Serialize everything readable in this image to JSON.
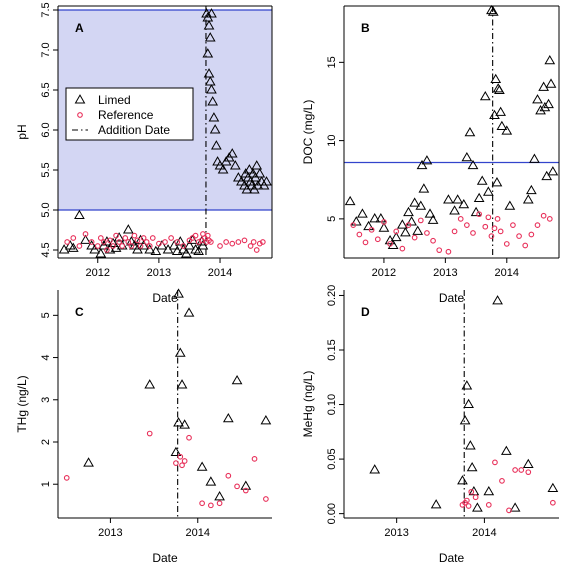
{
  "figure": {
    "legend": {
      "items": [
        {
          "label": "Limed",
          "marker": "triangle",
          "color": "#000000"
        },
        {
          "label": "Reference",
          "marker": "circle",
          "color": "#e8305a"
        },
        {
          "label": "Addition Date",
          "marker": "dash-dot-line",
          "color": "#000000"
        }
      ]
    },
    "colors": {
      "limed": "#000000",
      "reference": "#e8305a",
      "threshold_line": "#3344cc",
      "shaded_region": "#d3d6f3",
      "addition_line": "#000000"
    }
  },
  "chart_data": [
    {
      "panel": "A",
      "type": "scatter",
      "xlabel": "Date",
      "ylabel": "pH",
      "x_unit": "year",
      "xlim": [
        2011.35,
        2014.85
      ],
      "ylim": [
        4.4,
        7.55
      ],
      "x_ticks": [
        2012,
        2013,
        2014
      ],
      "x_tick_labels": [
        "2012",
        "2013",
        "2014"
      ],
      "y_ticks": [
        4.5,
        5.0,
        5.5,
        6.0,
        6.5,
        7.0,
        7.5
      ],
      "y_tick_labels": [
        "4.5",
        "5.0",
        "5.5",
        "6.0",
        "6.5",
        "7.0",
        "7.5"
      ],
      "grid": false,
      "legend_placement": "middle-left",
      "addition_date": 2013.77,
      "horizontal_lines": [
        5.0,
        7.5
      ],
      "shaded_band": [
        5.0,
        7.5
      ],
      "series": [
        {
          "name": "Limed",
          "marker": "triangle",
          "color": "#000000",
          "x": [
            2011.45,
            2011.55,
            2011.6,
            2011.7,
            2011.8,
            2011.9,
            2011.95,
            2012.05,
            2012.1,
            2012.15,
            2012.2,
            2012.25,
            2012.3,
            2012.35,
            2012.4,
            2012.5,
            2012.55,
            2012.6,
            2012.65,
            2012.7,
            2012.75,
            2012.85,
            2012.95,
            2013.05,
            2013.15,
            2013.25,
            2013.3,
            2013.35,
            2013.4,
            2013.45,
            2013.5,
            2013.55,
            2013.6,
            2013.65,
            2013.7,
            2013.72,
            2013.78,
            2013.8,
            2013.82,
            2013.84,
            2013.86,
            2013.8,
            2013.82,
            2013.84,
            2013.86,
            2013.88,
            2013.9,
            2013.92,
            2013.94,
            2013.96,
            2014.0,
            2014.05,
            2014.1,
            2014.15,
            2014.2,
            2014.25,
            2014.3,
            2014.35,
            2014.4,
            2014.42,
            2014.44,
            2014.46,
            2014.48,
            2014.5,
            2014.52,
            2014.54,
            2014.56,
            2014.58,
            2014.6,
            2014.62,
            2014.65,
            2014.68,
            2014.72,
            2014.76
          ],
          "y": [
            4.5,
            4.55,
            4.52,
            4.93,
            4.62,
            4.55,
            4.5,
            4.45,
            4.55,
            4.6,
            4.5,
            4.58,
            4.52,
            4.65,
            4.55,
            4.75,
            4.6,
            4.55,
            4.5,
            4.62,
            4.55,
            4.5,
            4.48,
            4.55,
            4.5,
            4.55,
            4.48,
            4.6,
            4.5,
            4.45,
            4.55,
            4.62,
            4.5,
            4.48,
            4.6,
            4.55,
            7.45,
            7.4,
            7.3,
            7.15,
            7.45,
            6.95,
            6.7,
            6.6,
            6.5,
            6.35,
            6.15,
            6.0,
            5.8,
            5.6,
            5.55,
            5.5,
            5.6,
            5.65,
            5.7,
            5.55,
            5.4,
            5.35,
            5.3,
            5.45,
            5.25,
            5.4,
            5.5,
            5.35,
            5.3,
            5.45,
            5.25,
            5.4,
            5.55,
            5.3,
            5.45,
            5.35,
            5.3,
            5.35
          ]
        },
        {
          "name": "Reference",
          "marker": "circle",
          "color": "#e8305a",
          "x": [
            2011.5,
            2011.6,
            2011.7,
            2011.8,
            2011.9,
            2012.0,
            2012.05,
            2012.1,
            2012.15,
            2012.2,
            2012.25,
            2012.3,
            2012.35,
            2012.4,
            2012.45,
            2012.5,
            2012.55,
            2012.6,
            2012.65,
            2012.7,
            2012.75,
            2012.8,
            2012.85,
            2012.9,
            2013.0,
            2013.1,
            2013.2,
            2013.3,
            2013.4,
            2013.5,
            2013.55,
            2013.6,
            2013.65,
            2013.7,
            2013.72,
            2013.75,
            2013.78,
            2013.8,
            2013.82,
            2013.85,
            2014.0,
            2014.1,
            2014.2,
            2014.3,
            2014.4,
            2014.5,
            2014.55,
            2014.6,
            2014.65,
            2014.7
          ],
          "y": [
            4.6,
            4.65,
            4.55,
            4.7,
            4.6,
            4.55,
            4.65,
            4.6,
            4.5,
            4.62,
            4.55,
            4.68,
            4.6,
            4.55,
            4.65,
            4.6,
            4.55,
            4.68,
            4.62,
            4.55,
            4.65,
            4.6,
            4.55,
            4.65,
            4.58,
            4.6,
            4.65,
            4.6,
            4.55,
            4.62,
            4.65,
            4.68,
            4.6,
            4.62,
            4.7,
            4.65,
            4.6,
            4.68,
            4.62,
            4.6,
            4.55,
            4.6,
            4.58,
            4.6,
            4.62,
            4.55,
            4.6,
            4.5,
            4.58,
            4.6
          ]
        }
      ]
    },
    {
      "panel": "B",
      "type": "scatter",
      "xlabel": "Date",
      "ylabel": "DOC (mg/L)",
      "x_unit": "year",
      "xlim": [
        2011.35,
        2014.85
      ],
      "ylim": [
        2.5,
        18.6
      ],
      "x_ticks": [
        2012,
        2013,
        2014
      ],
      "x_tick_labels": [
        "2012",
        "2013",
        "2014"
      ],
      "y_ticks": [
        5,
        10,
        15
      ],
      "y_tick_labels": [
        "5",
        "10",
        "15"
      ],
      "grid": false,
      "addition_date": 2013.77,
      "horizontal_lines": [
        8.6
      ],
      "series": [
        {
          "name": "Limed",
          "marker": "triangle",
          "color": "#000000",
          "x": [
            2011.45,
            2011.55,
            2011.65,
            2011.75,
            2011.85,
            2011.95,
            2012.0,
            2012.1,
            2012.15,
            2012.2,
            2012.3,
            2012.35,
            2012.4,
            2012.45,
            2012.5,
            2012.55,
            2012.6,
            2012.62,
            2012.65,
            2012.7,
            2012.75,
            2012.8,
            2013.05,
            2013.15,
            2013.2,
            2013.3,
            2013.35,
            2013.4,
            2013.45,
            2013.5,
            2013.55,
            2013.6,
            2013.65,
            2013.7,
            2013.75,
            2013.78,
            2013.8,
            2013.82,
            2013.84,
            2013.86,
            2013.88,
            2013.9,
            2013.92,
            2014.0,
            2014.05,
            2014.35,
            2014.4,
            2014.45,
            2014.5,
            2014.55,
            2014.6,
            2014.62,
            2014.65,
            2014.68,
            2014.7,
            2014.72,
            2014.75
          ],
          "y": [
            6.1,
            4.8,
            5.3,
            4.5,
            5.0,
            5.0,
            4.4,
            3.6,
            3.3,
            3.8,
            4.6,
            4.1,
            5.4,
            4.8,
            6.0,
            4.2,
            5.8,
            8.4,
            6.9,
            8.7,
            5.3,
            4.9,
            6.2,
            5.5,
            6.2,
            5.9,
            8.9,
            10.5,
            8.4,
            5.4,
            6.3,
            7.4,
            12.8,
            6.7,
            18.3,
            18.2,
            11.6,
            13.9,
            7.3,
            13.3,
            13.2,
            11.8,
            10.9,
            10.6,
            5.8,
            6.2,
            6.8,
            8.8,
            12.6,
            11.9,
            13.4,
            12.1,
            7.7,
            12.3,
            15.1,
            13.6,
            8.0
          ]
        },
        {
          "name": "Reference",
          "marker": "circle",
          "color": "#e8305a",
          "x": [
            2011.5,
            2011.6,
            2011.7,
            2011.8,
            2011.9,
            2012.0,
            2012.1,
            2012.2,
            2012.3,
            2012.4,
            2012.5,
            2012.6,
            2012.7,
            2012.8,
            2012.9,
            2013.05,
            2013.15,
            2013.25,
            2013.35,
            2013.45,
            2013.55,
            2013.65,
            2013.7,
            2013.75,
            2013.8,
            2013.85,
            2013.9,
            2014.0,
            2014.1,
            2014.2,
            2014.3,
            2014.4,
            2014.5,
            2014.6,
            2014.7
          ],
          "y": [
            4.6,
            4.0,
            3.5,
            4.3,
            3.7,
            4.8,
            3.4,
            4.2,
            3.1,
            4.6,
            3.8,
            4.9,
            4.1,
            3.6,
            3.0,
            2.9,
            4.2,
            5.0,
            4.6,
            4.1,
            5.3,
            4.5,
            5.1,
            3.9,
            4.4,
            5.0,
            4.2,
            3.4,
            4.6,
            3.9,
            3.3,
            4.0,
            4.6,
            5.2,
            5.0
          ]
        }
      ]
    },
    {
      "panel": "C",
      "type": "scatter",
      "xlabel": "Date",
      "ylabel": "THg (ng/L)",
      "x_unit": "year",
      "xlim": [
        2012.4,
        2014.85
      ],
      "ylim": [
        0.2,
        5.6
      ],
      "x_ticks": [
        2013,
        2014
      ],
      "x_tick_labels": [
        "2013",
        "2014"
      ],
      "y_ticks": [
        1,
        2,
        3,
        4,
        5
      ],
      "y_tick_labels": [
        "1",
        "2",
        "3",
        "4",
        "5"
      ],
      "grid": false,
      "addition_date": 2013.77,
      "series": [
        {
          "name": "Limed",
          "marker": "triangle",
          "color": "#000000",
          "x": [
            2012.75,
            2013.45,
            2013.75,
            2013.78,
            2013.8,
            2013.82,
            2013.85,
            2013.9,
            2013.78,
            2014.05,
            2014.15,
            2014.25,
            2014.35,
            2014.45,
            2014.55,
            2014.78
          ],
          "y": [
            1.5,
            3.35,
            1.75,
            5.5,
            4.1,
            3.35,
            2.4,
            5.05,
            2.45,
            1.4,
            1.05,
            0.7,
            2.55,
            3.45,
            0.95,
            2.5
          ]
        },
        {
          "name": "Reference",
          "marker": "circle",
          "color": "#e8305a",
          "x": [
            2012.5,
            2013.45,
            2013.75,
            2013.8,
            2013.82,
            2013.85,
            2013.9,
            2014.05,
            2014.15,
            2014.25,
            2014.35,
            2014.45,
            2014.55,
            2014.65,
            2014.78
          ],
          "y": [
            1.15,
            2.2,
            1.5,
            1.65,
            1.45,
            1.55,
            2.1,
            0.55,
            0.5,
            0.55,
            1.2,
            0.95,
            0.85,
            1.6,
            0.65
          ]
        }
      ]
    },
    {
      "panel": "D",
      "type": "scatter",
      "xlabel": "Date",
      "ylabel": "MeHg (ng/L)",
      "x_unit": "year",
      "xlim": [
        2012.4,
        2014.85
      ],
      "ylim": [
        -0.004,
        0.205
      ],
      "x_ticks": [
        2013,
        2014
      ],
      "x_tick_labels": [
        "2013",
        "2014"
      ],
      "y_ticks": [
        0.0,
        0.05,
        0.1,
        0.15,
        0.2
      ],
      "y_tick_labels": [
        "0.00",
        "0.05",
        "0.10",
        "0.15",
        "0.20"
      ],
      "grid": false,
      "addition_date": 2013.77,
      "series": [
        {
          "name": "Limed",
          "marker": "triangle",
          "color": "#000000",
          "x": [
            2012.75,
            2013.45,
            2013.75,
            2013.78,
            2013.8,
            2013.82,
            2013.84,
            2013.86,
            2013.88,
            2013.92,
            2014.05,
            2014.15,
            2014.25,
            2014.35,
            2014.5,
            2014.78
          ],
          "y": [
            0.04,
            0.008,
            0.03,
            0.085,
            0.117,
            0.1,
            0.062,
            0.042,
            0.02,
            0.005,
            0.02,
            0.195,
            0.057,
            0.005,
            0.045,
            0.023
          ]
        },
        {
          "name": "Reference",
          "marker": "circle",
          "color": "#e8305a",
          "x": [
            2013.75,
            2013.78,
            2013.8,
            2013.82,
            2013.85,
            2013.9,
            2014.05,
            2014.12,
            2014.2,
            2014.28,
            2014.35,
            2014.42,
            2014.5,
            2014.78
          ],
          "y": [
            0.008,
            0.01,
            0.012,
            0.007,
            0.02,
            0.015,
            0.008,
            0.047,
            0.03,
            0.003,
            0.04,
            0.04,
            0.038,
            0.01
          ]
        }
      ]
    }
  ]
}
